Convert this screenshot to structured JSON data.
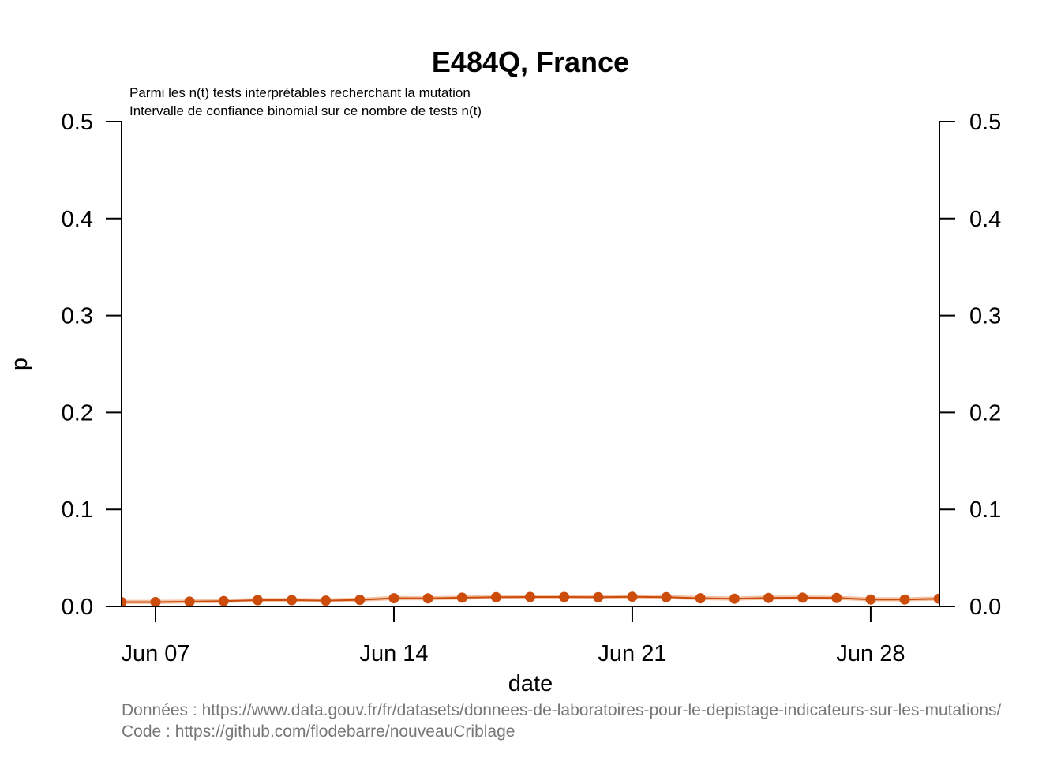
{
  "chart_data": {
    "type": "line",
    "title": "E484Q, France",
    "subtitle_lines": [
      "Parmi les n(t) tests interprétables recherchant la mutation",
      "Intervalle de confiance binomial sur ce nombre de tests n(t)"
    ],
    "xlabel": "date",
    "ylabel": "p",
    "x_tick_labels": [
      "Jun 07",
      "Jun 14",
      "Jun 21",
      "Jun 28"
    ],
    "x_tick_days": [
      7,
      14,
      21,
      28
    ],
    "xlim_days": [
      6,
      30
    ],
    "ylim": [
      0,
      0.5
    ],
    "y_ticks": [
      "0.0",
      "0.1",
      "0.2",
      "0.3",
      "0.4",
      "0.5"
    ],
    "y_tick_values": [
      0,
      0.1,
      0.2,
      0.3,
      0.4,
      0.5
    ],
    "right_axis": true,
    "grid": false,
    "colors": {
      "line": "#cc4c0c",
      "point": "#cc4c0c",
      "band": "#f4c2a4"
    },
    "series": [
      {
        "days": [
          6,
          7,
          8,
          9,
          10,
          11,
          12,
          13,
          14,
          15,
          16,
          17,
          18,
          19,
          20,
          21,
          22,
          23,
          24,
          25,
          26,
          27,
          28,
          29,
          30
        ],
        "values": [
          0.0045,
          0.0045,
          0.005,
          0.0055,
          0.0065,
          0.0065,
          0.006,
          0.0068,
          0.0085,
          0.0083,
          0.009,
          0.0095,
          0.0098,
          0.0098,
          0.0095,
          0.01,
          0.0095,
          0.0085,
          0.008,
          0.0088,
          0.009,
          0.0088,
          0.0072,
          0.0072,
          0.008
        ],
        "lower": [
          0.0025,
          0.0025,
          0.003,
          0.0035,
          0.0045,
          0.0045,
          0.004,
          0.0048,
          0.0065,
          0.0063,
          0.007,
          0.0075,
          0.0078,
          0.0078,
          0.0075,
          0.008,
          0.0075,
          0.0065,
          0.006,
          0.0068,
          0.007,
          0.0068,
          0.0052,
          0.0052,
          0.006
        ],
        "upper": [
          0.0068,
          0.0068,
          0.0072,
          0.0077,
          0.0088,
          0.0088,
          0.0083,
          0.0092,
          0.0108,
          0.0105,
          0.0112,
          0.0118,
          0.012,
          0.012,
          0.0118,
          0.0125,
          0.0118,
          0.0108,
          0.0103,
          0.0112,
          0.0113,
          0.011,
          0.0095,
          0.0095,
          0.0103
        ]
      }
    ]
  },
  "footer": {
    "data_source": "Données : https://www.data.gouv.fr/fr/datasets/donnees-de-laboratoires-pour-le-depistage-indicateurs-sur-les-mutations/",
    "code_source": "Code : https://github.com/flodebarre/nouveauCriblage"
  }
}
